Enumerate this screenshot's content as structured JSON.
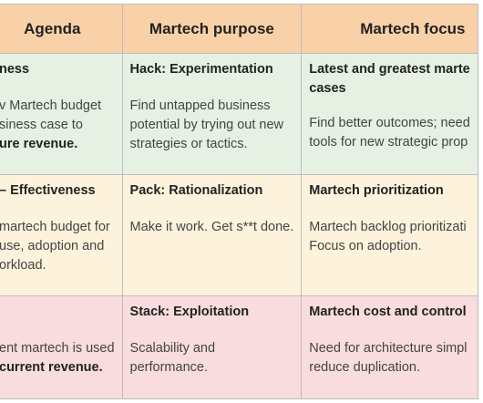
{
  "headers": [
    "Agenda",
    "Martech purpose",
    "Martech focus"
  ],
  "rows": [
    {
      "agenda_title": "ness",
      "agenda_lines": [
        "v Martech budget",
        "siness case to"
      ],
      "agenda_bold": "ure revenue.",
      "purpose_title": "Hack: Experimentation",
      "purpose_lines": [
        "Find untapped business",
        "potential by trying out new",
        "strategies or tactics."
      ],
      "focus_title_lines": [
        "Latest and greatest marte",
        "cases"
      ],
      "focus_lines": [
        "Find better outcomes; need",
        "tools for new strategic prop"
      ]
    },
    {
      "agenda_title": "– Effectiveness",
      "agenda_lines": [
        "martech budget for",
        "use, adoption and",
        "orkload."
      ],
      "agenda_bold": "",
      "purpose_title": "Pack: Rationalization",
      "purpose_lines": [
        "Make it work. Get s**t done."
      ],
      "focus_title_lines": [
        "Martech prioritization"
      ],
      "focus_lines": [
        "Martech backlog prioritizati",
        "Focus on adoption."
      ]
    },
    {
      "agenda_title": "",
      "agenda_lines": [
        "ent martech is used"
      ],
      "agenda_bold": "current revenue.",
      "purpose_title": "Stack: Exploitation",
      "purpose_lines": [
        "Scalability and",
        "performance."
      ],
      "focus_title_lines": [
        "Martech cost and control"
      ],
      "focus_lines": [
        "Need for architecture simpl",
        "reduce duplication."
      ]
    }
  ]
}
